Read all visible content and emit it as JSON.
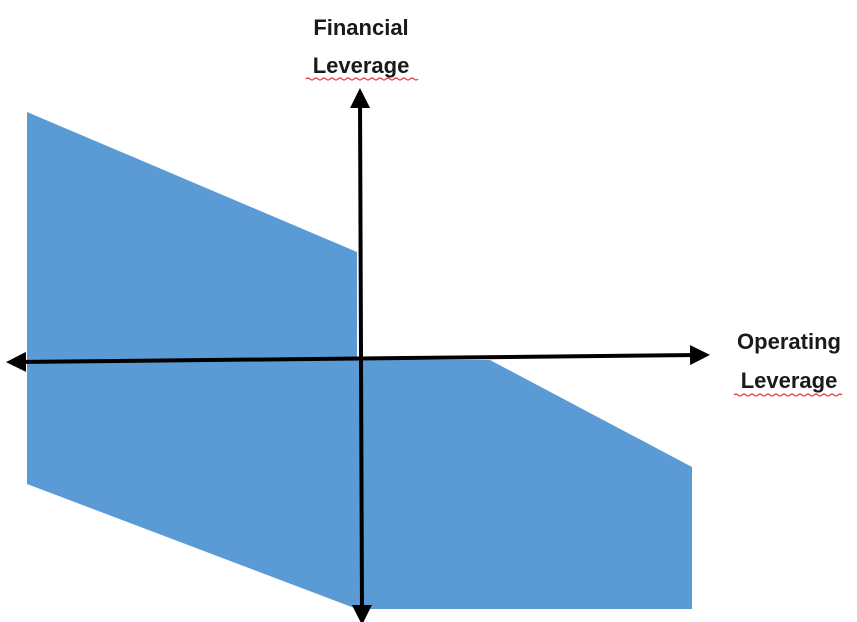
{
  "diagram": {
    "y_axis_label": {
      "line1": "Financial",
      "line2": "Leverage"
    },
    "x_axis_label": {
      "line1": "Operating",
      "line2": "Leverage"
    },
    "colors": {
      "region_fill": "#5b9bd5",
      "axis": "#000000",
      "text": "#1a1a1a",
      "spellcheck_underline": "#e0332b"
    }
  }
}
